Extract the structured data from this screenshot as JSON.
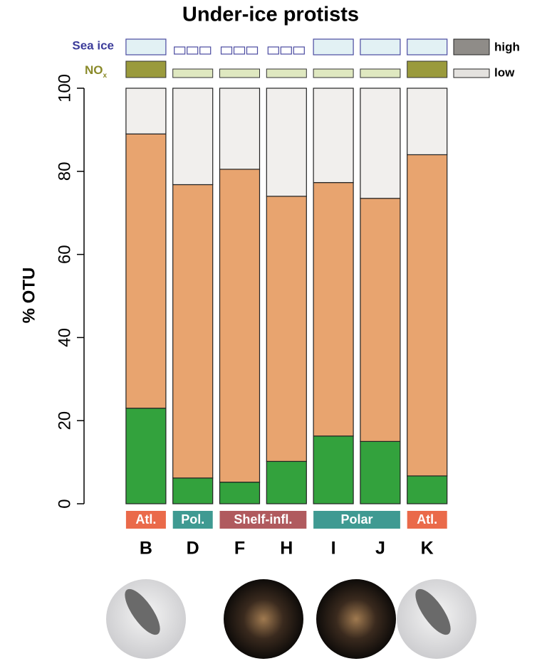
{
  "chart_data": {
    "type": "stacked_bar",
    "title": "Under-ice protists",
    "ylabel": "% OTU",
    "categories": [
      "B",
      "D",
      "F",
      "H",
      "I",
      "J",
      "K"
    ],
    "series": [
      {
        "color": "#33a23d",
        "values": [
          23,
          6.2,
          5.2,
          10.2,
          16.3,
          15,
          6.7
        ]
      },
      {
        "color": "#e8a46f",
        "values": [
          66,
          70.6,
          75.3,
          63.8,
          61,
          58.5,
          77.3
        ]
      },
      {
        "color": "#f1efed",
        "values": [
          11,
          23.2,
          19.5,
          26,
          22.7,
          26.5,
          16
        ]
      }
    ],
    "ylim": [
      0,
      100
    ],
    "yticks": [
      0,
      20,
      40,
      60,
      80,
      100
    ],
    "sea_ice_label": "Sea ice",
    "nox_label": "NO",
    "nox_subscript": "x",
    "legend": {
      "high": "high",
      "low": "low"
    },
    "sea_ice": [
      "high",
      "low",
      "low",
      "low",
      "high",
      "high",
      "high"
    ],
    "nox": [
      "high",
      "low",
      "low",
      "low",
      "low",
      "low",
      "high"
    ],
    "regions": [
      {
        "label": "Atl.",
        "start": "B",
        "end": "B",
        "color": "#ea6a4a"
      },
      {
        "label": "Pol.",
        "start": "D",
        "end": "D",
        "color": "#3f9a92"
      },
      {
        "label": "Shelf-infl.",
        "start": "F",
        "end": "H",
        "color": "#b05a5e"
      },
      {
        "label": "Polar",
        "start": "I",
        "end": "J",
        "color": "#3f9a92"
      },
      {
        "label": "Atl.",
        "start": "K",
        "end": "K",
        "color": "#ea6a4a"
      }
    ]
  }
}
